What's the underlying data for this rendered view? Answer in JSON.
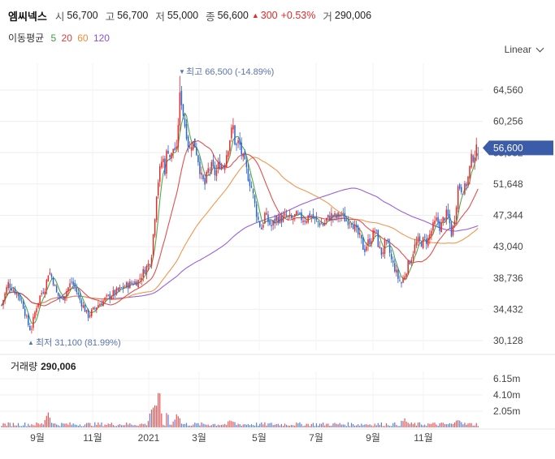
{
  "header": {
    "name": "엠씨넥스",
    "open_label": "시",
    "open": "56,700",
    "high_label": "고",
    "high": "56,700",
    "low_label": "저",
    "low": "55,000",
    "close_label": "종",
    "close": "56,600",
    "change": "300",
    "change_pct": "+0.53%",
    "volume_label": "거",
    "volume": "290,006"
  },
  "ma_legend": {
    "label": "이동평균",
    "periods": [
      "5",
      "20",
      "60",
      "120"
    ]
  },
  "scale_toggle": {
    "label": "Linear"
  },
  "annotations": {
    "high": "최고 66,500 (-14.89%)",
    "low": "최저 31,100 (81.99%)"
  },
  "last_price_tag": "56,600",
  "volume_panel": {
    "title": "거래량",
    "value": "290,006",
    "ticks": [
      "6.15m",
      "4.10m",
      "2.05m"
    ]
  },
  "colors": {
    "up": "#e22a2a",
    "down": "#2a63d4",
    "ma5": "#3ca03c",
    "ma20": "#e03c3c",
    "ma60": "#f08c3c",
    "ma120": "#8c50dc",
    "tag": "#3b5ca8",
    "annot": "#5a73aa"
  },
  "chart_data": {
    "type": "candlestick",
    "price_axis_ticks": [
      64560,
      60256,
      55952,
      51648,
      47344,
      43040,
      38736,
      34432,
      30128
    ],
    "price_range": [
      28500,
      69300
    ],
    "time_axis_ticks": [
      "9월",
      "11월",
      "2021",
      "3월",
      "5월",
      "7월",
      "9월",
      "11월"
    ],
    "volume_ticks": [
      6.15,
      4.1,
      2.05
    ],
    "volume_unit": "m",
    "high": 66500,
    "low": 31100,
    "last_close": 56600,
    "moving_averages": [
      5,
      20,
      60,
      120
    ],
    "grid": true
  }
}
